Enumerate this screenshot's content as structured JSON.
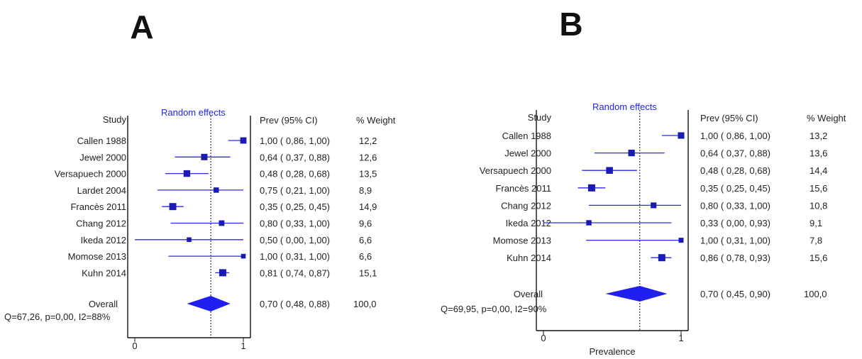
{
  "chart_data": [
    {
      "type": "forest",
      "panel_label": "A",
      "model_label": "Random effects",
      "col_study": "Study",
      "col_prev": "Prev (95% CI)",
      "col_weight": "% Weight",
      "xlim": [
        0,
        1
      ],
      "x_ticks": [
        "0",
        "1"
      ],
      "xlabel": "",
      "reference_line": 0.7,
      "studies": [
        {
          "name": "Callen 1988",
          "est": 1.0,
          "lo": 0.86,
          "hi": 1.0,
          "prev_text": "1,00  (  0,86,  1,00)",
          "weight": "12,2"
        },
        {
          "name": "Jewel 2000",
          "est": 0.64,
          "lo": 0.37,
          "hi": 0.88,
          "prev_text": "0,64  (  0,37,  0,88)",
          "weight": "12,6"
        },
        {
          "name": "Versapuech 2000",
          "est": 0.48,
          "lo": 0.28,
          "hi": 0.68,
          "prev_text": "0,48  (  0,28,  0,68)",
          "weight": "13,5"
        },
        {
          "name": "Lardet 2004",
          "est": 0.75,
          "lo": 0.21,
          "hi": 1.0,
          "prev_text": "0,75  (  0,21,  1,00)",
          "weight": "8,9"
        },
        {
          "name": "Francès 2011",
          "est": 0.35,
          "lo": 0.25,
          "hi": 0.45,
          "prev_text": "0,35  (  0,25,  0,45)",
          "weight": "14,9"
        },
        {
          "name": "Chang 2012",
          "est": 0.8,
          "lo": 0.33,
          "hi": 1.0,
          "prev_text": "0,80  (  0,33,  1,00)",
          "weight": "9,6"
        },
        {
          "name": "Ikeda 2012",
          "est": 0.5,
          "lo": 0.0,
          "hi": 1.0,
          "prev_text": "0,50  (  0,00,  1,00)",
          "weight": "6,6"
        },
        {
          "name": "Momose 2013",
          "est": 1.0,
          "lo": 0.31,
          "hi": 1.0,
          "prev_text": "1,00  (  0,31,  1,00)",
          "weight": "6,6"
        },
        {
          "name": "Kuhn 2014",
          "est": 0.81,
          "lo": 0.74,
          "hi": 0.87,
          "prev_text": "0,81  (  0,74,  0,87)",
          "weight": "15,1"
        }
      ],
      "overall": {
        "name": "Overall",
        "est": 0.7,
        "lo": 0.48,
        "hi": 0.88,
        "prev_text": "0,70  (  0,48,  0,88)",
        "weight": "100,0"
      },
      "heterogeneity": "Q=67,26, p=0,00, I2=88%"
    },
    {
      "type": "forest",
      "panel_label": "B",
      "model_label": "Random effects",
      "col_study": "Study",
      "col_prev": "Prev (95% CI)",
      "col_weight": "% Weight",
      "xlim": [
        0,
        1
      ],
      "x_ticks": [
        "0",
        "1"
      ],
      "xlabel": "Prevalence",
      "reference_line": 0.7,
      "studies": [
        {
          "name": "Callen 1988",
          "est": 1.0,
          "lo": 0.86,
          "hi": 1.0,
          "prev_text": "1,00  (  0,86,  1,00)",
          "weight": "13,2"
        },
        {
          "name": "Jewel 2000",
          "est": 0.64,
          "lo": 0.37,
          "hi": 0.88,
          "prev_text": "0,64  (  0,37,  0,88)",
          "weight": "13,6"
        },
        {
          "name": "Versapuech 2000",
          "est": 0.48,
          "lo": 0.28,
          "hi": 0.68,
          "prev_text": "0,48  (  0,28,  0,68)",
          "weight": "14,4"
        },
        {
          "name": "Francès 2011",
          "est": 0.35,
          "lo": 0.25,
          "hi": 0.45,
          "prev_text": "0,35  (  0,25,  0,45)",
          "weight": "15,6"
        },
        {
          "name": "Chang 2012",
          "est": 0.8,
          "lo": 0.33,
          "hi": 1.0,
          "prev_text": "0,80  (  0,33,  1,00)",
          "weight": "10,8"
        },
        {
          "name": "Ikeda 2012",
          "est": 0.33,
          "lo": 0.0,
          "hi": 0.93,
          "prev_text": "0,33  (  0,00,  0,93)",
          "weight": "9,1"
        },
        {
          "name": "Momose 2013",
          "est": 1.0,
          "lo": 0.31,
          "hi": 1.0,
          "prev_text": "1,00  (  0,31,  1,00)",
          "weight": "7,8"
        },
        {
          "name": "Kuhn 2014",
          "est": 0.86,
          "lo": 0.78,
          "hi": 0.93,
          "prev_text": "0,86  (  0,78,  0,93)",
          "weight": "15,6"
        }
      ],
      "overall": {
        "name": "Overall",
        "est": 0.7,
        "lo": 0.45,
        "hi": 0.9,
        "prev_text": "0,70  (  0,45,  0,90)",
        "weight": "100,0"
      },
      "heterogeneity": "Q=69,95, p=0,00, I2=90%"
    }
  ],
  "colors": {
    "marker": "#1a1ab4",
    "ci_line": "#2a2af0",
    "diamond": "#1f1ff0",
    "model_label": "#2323e6",
    "axis": "#111111"
  }
}
